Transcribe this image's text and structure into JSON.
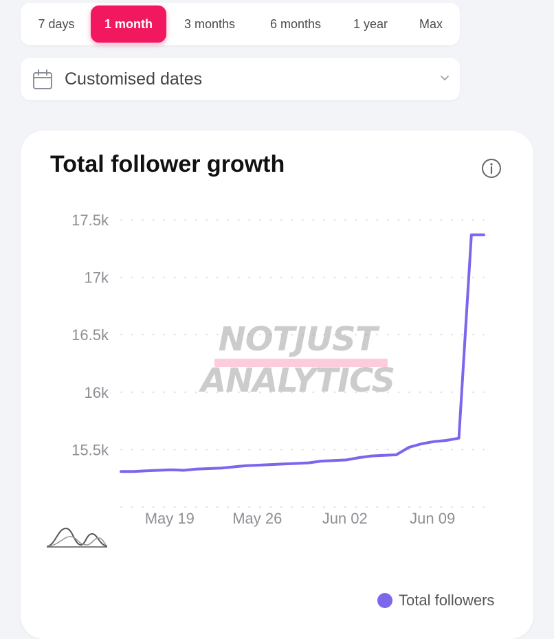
{
  "range_selector": {
    "options": [
      "7 days",
      "1 month",
      "3 months",
      "6 months",
      "1 year",
      "Max"
    ],
    "selected": "1 month"
  },
  "date_picker": {
    "label": "Customised dates",
    "icon": "calendar-icon",
    "chevron_icon": "chevron-down-icon"
  },
  "card": {
    "title": "Total follower growth",
    "info_icon": "info-icon",
    "watermark_text": [
      "NOTJUST",
      "ANALYTICS"
    ]
  },
  "colors": {
    "accent": "#f1185f",
    "series": "#7b66ec",
    "background": "#f2f4f8"
  },
  "chart_data": {
    "type": "line",
    "title": "Total follower growth",
    "xlabel": "",
    "ylabel": "",
    "x_ticks": [
      "May 19",
      "May 26",
      "Jun 02",
      "Jun 09"
    ],
    "y_ticks": [
      "17.5k",
      "17k",
      "16.5k",
      "16k",
      "15.5k"
    ],
    "y_tick_values": [
      17500,
      17000,
      16500,
      16000,
      15500
    ],
    "ylim": [
      15000,
      17500
    ],
    "grid": "dotted horizontal",
    "legend_position": "bottom-right",
    "series": [
      {
        "name": "Total followers",
        "color": "#7b66ec",
        "x": [
          "May 15",
          "May 16",
          "May 17",
          "May 18",
          "May 19",
          "May 20",
          "May 21",
          "May 22",
          "May 23",
          "May 24",
          "May 25",
          "May 26",
          "May 27",
          "May 28",
          "May 29",
          "May 30",
          "May 31",
          "Jun 01",
          "Jun 02",
          "Jun 03",
          "Jun 04",
          "Jun 05",
          "Jun 06",
          "Jun 07",
          "Jun 08",
          "Jun 09",
          "Jun 10",
          "Jun 11",
          "Jun 12",
          "Jun 13"
        ],
        "values": [
          15310,
          15310,
          15315,
          15320,
          15325,
          15320,
          15330,
          15335,
          15340,
          15350,
          15360,
          15365,
          15370,
          15375,
          15380,
          15385,
          15400,
          15405,
          15410,
          15430,
          15445,
          15450,
          15455,
          15520,
          15550,
          15570,
          15580,
          15600,
          17370,
          17370
        ]
      }
    ]
  }
}
